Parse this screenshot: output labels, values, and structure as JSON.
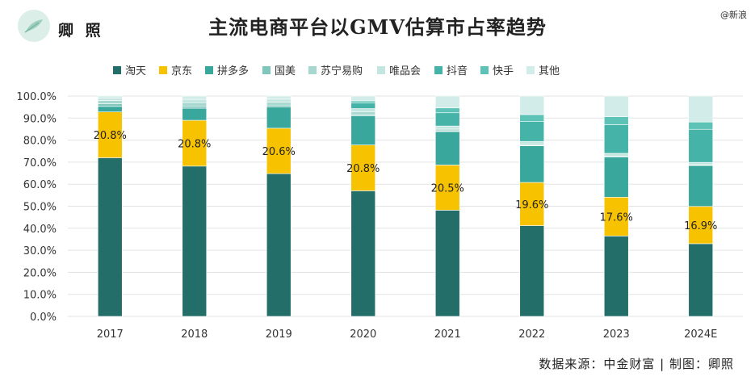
{
  "header": {
    "brand": "卿 照",
    "corner_text": "@新浪",
    "logo_icon": "leaf-icon"
  },
  "footer": {
    "source": "数据来源：中金财富 | 制图：卿照"
  },
  "colors": {
    "淘天": "#236e69",
    "京东": "#f7c300",
    "拼多多": "#3aa79c",
    "国美": "#7fc6bc",
    "苏宁易购": "#a6d8cf",
    "唯品会": "#c3e6e0",
    "抖音": "#45b3a8",
    "快手": "#5cc3b6",
    "其他": "#d2ede9"
  },
  "chart_data": {
    "type": "bar",
    "stacked": true,
    "title": "主流电商平台以GMV估算市占率趋势",
    "categories": [
      "2017",
      "2018",
      "2019",
      "2020",
      "2021",
      "2022",
      "2023",
      "2024E"
    ],
    "ylim": [
      0,
      100
    ],
    "yticks": [
      "0.0%",
      "10.0%",
      "20.0%",
      "30.0%",
      "40.0%",
      "50.0%",
      "60.0%",
      "70.0%",
      "80.0%",
      "90.0%",
      "100.0%"
    ],
    "legend_position": "top",
    "grid": true,
    "series": [
      {
        "name": "淘天",
        "values": [
          72.0,
          68.2,
          64.8,
          57.0,
          48.2,
          41.2,
          36.5,
          33.0
        ]
      },
      {
        "name": "京东",
        "values": [
          20.8,
          20.8,
          20.6,
          20.8,
          20.5,
          19.6,
          17.6,
          16.9
        ]
      },
      {
        "name": "拼多多",
        "values": [
          2.5,
          5.5,
          9.6,
          13.2,
          15.2,
          16.6,
          18.3,
          18.6
        ]
      },
      {
        "name": "国美",
        "values": [
          1.2,
          1.0,
          0.9,
          0.6,
          0.3,
          0.2,
          0.1,
          0.1
        ]
      },
      {
        "name": "苏宁易购",
        "values": [
          1.5,
          1.5,
          1.3,
          1.2,
          0.8,
          0.5,
          0.3,
          0.2
        ]
      },
      {
        "name": "唯品会",
        "values": [
          1.0,
          1.5,
          1.4,
          1.5,
          1.4,
          1.3,
          1.2,
          1.1
        ]
      },
      {
        "name": "抖音",
        "values": [
          0,
          0,
          0,
          2.5,
          6.0,
          9.0,
          13.0,
          15.0
        ]
      },
      {
        "name": "快手",
        "values": [
          0,
          0,
          0,
          1.0,
          2.2,
          3.2,
          3.6,
          3.3
        ]
      },
      {
        "name": "其他",
        "values": [
          1.0,
          1.5,
          1.4,
          2.2,
          5.4,
          8.4,
          9.4,
          11.8
        ]
      }
    ],
    "data_labels": [
      "20.8%",
      "20.8%",
      "20.6%",
      "20.8%",
      "20.5%",
      "19.6%",
      "17.6%",
      "16.9%"
    ],
    "data_label_series": "京东"
  }
}
